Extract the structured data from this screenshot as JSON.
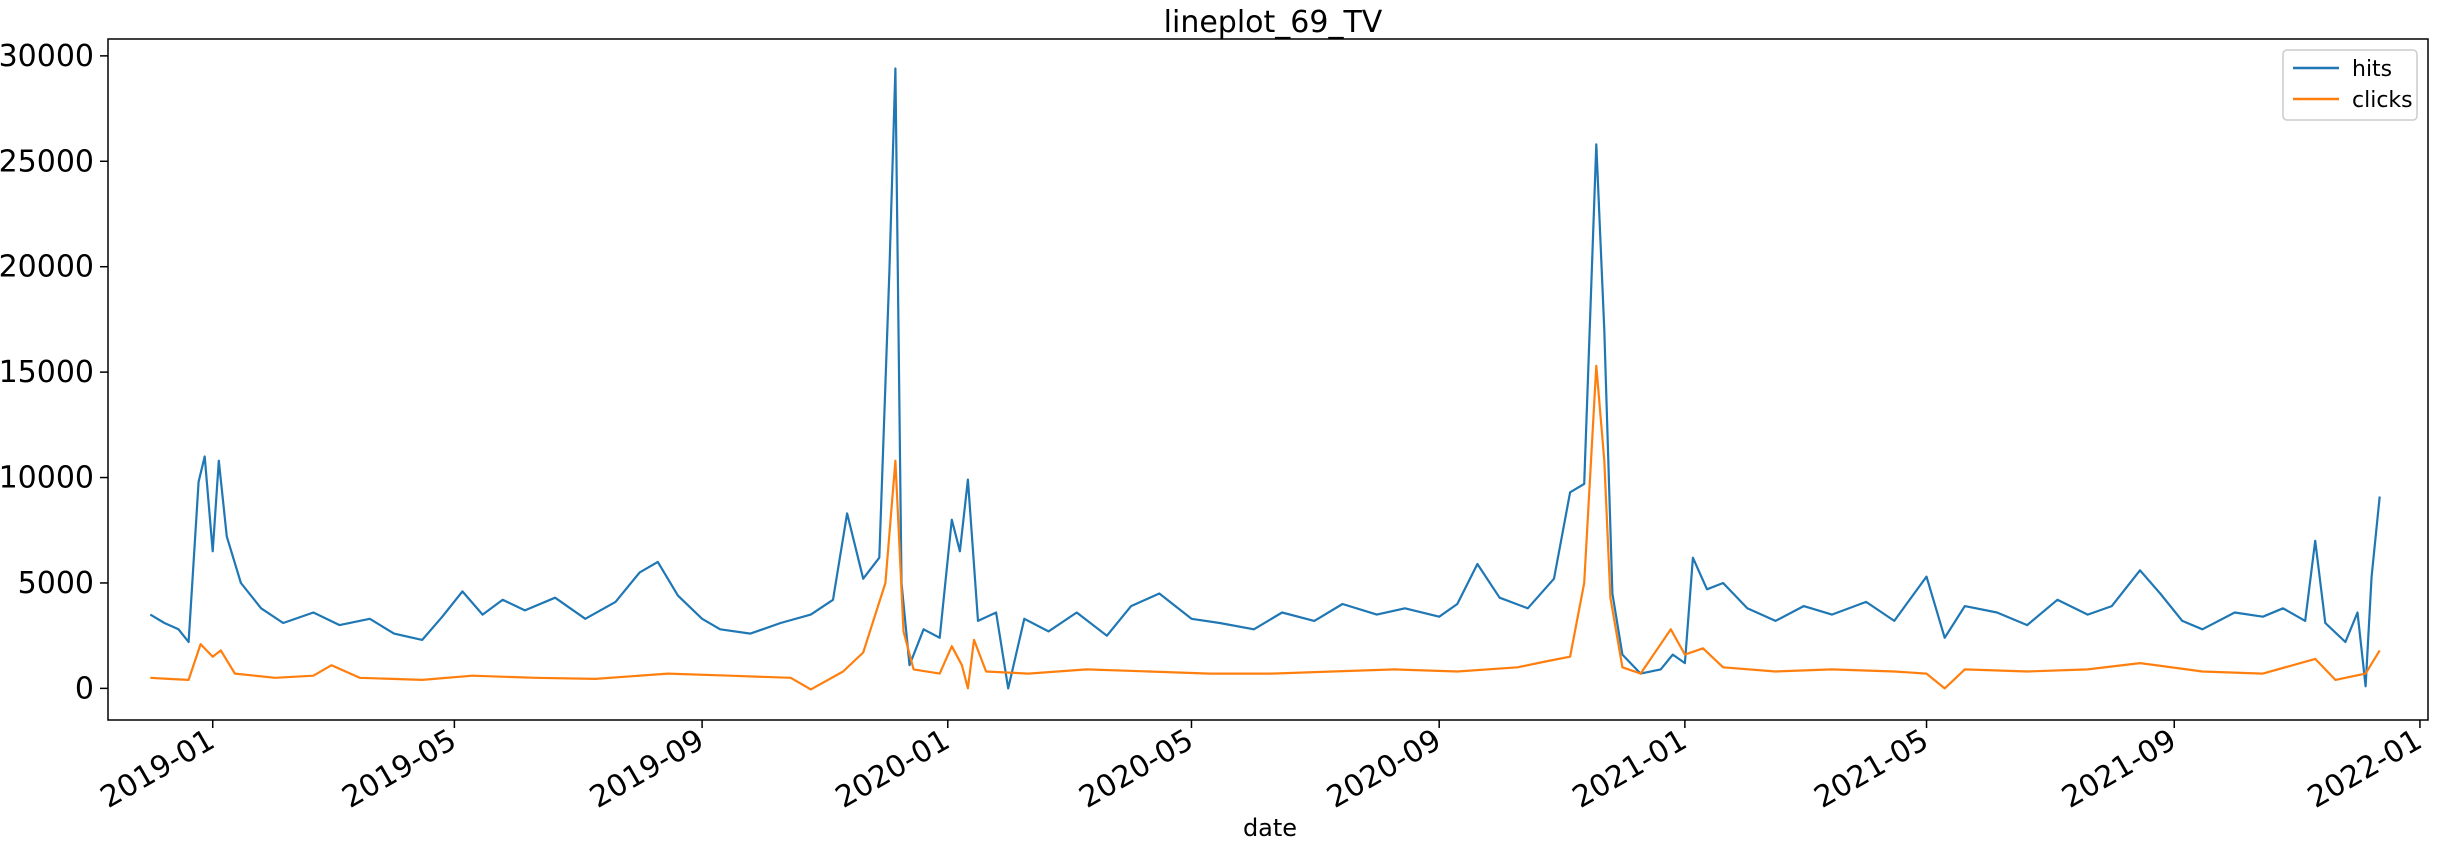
{
  "chart_data": {
    "type": "line",
    "title": "lineplot_69_TV",
    "xlabel": "date",
    "ylabel": "",
    "x_range": [
      "2018-11-10",
      "2022-01-05"
    ],
    "ylim": [
      -1500,
      30800
    ],
    "x_ticks": [
      "2019-01",
      "2019-05",
      "2019-09",
      "2020-01",
      "2020-05",
      "2020-09",
      "2021-01",
      "2021-05",
      "2021-09",
      "2022-01"
    ],
    "y_ticks": [
      0,
      5000,
      10000,
      15000,
      20000,
      25000,
      30000
    ],
    "grid": false,
    "legend": "top-right",
    "series": [
      {
        "name": "hits",
        "color": "#1f77b4",
        "points": [
          [
            "2018-12-01",
            3500
          ],
          [
            "2018-12-08",
            3100
          ],
          [
            "2018-12-15",
            2800
          ],
          [
            "2018-12-20",
            2200
          ],
          [
            "2018-12-25",
            9800
          ],
          [
            "2018-12-28",
            11000
          ],
          [
            "2019-01-01",
            6500
          ],
          [
            "2019-01-04",
            10800
          ],
          [
            "2019-01-08",
            7200
          ],
          [
            "2019-01-15",
            5000
          ],
          [
            "2019-01-25",
            3800
          ],
          [
            "2019-02-05",
            3100
          ],
          [
            "2019-02-20",
            3600
          ],
          [
            "2019-03-05",
            3000
          ],
          [
            "2019-03-20",
            3300
          ],
          [
            "2019-04-01",
            2600
          ],
          [
            "2019-04-15",
            2300
          ],
          [
            "2019-04-25",
            3400
          ],
          [
            "2019-05-05",
            4600
          ],
          [
            "2019-05-15",
            3500
          ],
          [
            "2019-05-25",
            4200
          ],
          [
            "2019-06-05",
            3700
          ],
          [
            "2019-06-20",
            4300
          ],
          [
            "2019-07-05",
            3300
          ],
          [
            "2019-07-20",
            4100
          ],
          [
            "2019-08-01",
            5500
          ],
          [
            "2019-08-10",
            6000
          ],
          [
            "2019-08-20",
            4400
          ],
          [
            "2019-09-01",
            3300
          ],
          [
            "2019-09-10",
            2800
          ],
          [
            "2019-09-25",
            2600
          ],
          [
            "2019-10-10",
            3100
          ],
          [
            "2019-10-25",
            3500
          ],
          [
            "2019-11-05",
            4200
          ],
          [
            "2019-11-12",
            8300
          ],
          [
            "2019-11-20",
            5200
          ],
          [
            "2019-11-28",
            6200
          ],
          [
            "2019-12-03",
            19800
          ],
          [
            "2019-12-06",
            29400
          ],
          [
            "2019-12-09",
            5000
          ],
          [
            "2019-12-13",
            1100
          ],
          [
            "2019-12-20",
            2800
          ],
          [
            "2019-12-28",
            2400
          ],
          [
            "2020-01-03",
            8000
          ],
          [
            "2020-01-07",
            6500
          ],
          [
            "2020-01-11",
            9900
          ],
          [
            "2020-01-16",
            3200
          ],
          [
            "2020-01-25",
            3600
          ],
          [
            "2020-01-31",
            0
          ],
          [
            "2020-02-08",
            3300
          ],
          [
            "2020-02-20",
            2700
          ],
          [
            "2020-03-05",
            3600
          ],
          [
            "2020-03-20",
            2500
          ],
          [
            "2020-04-01",
            3900
          ],
          [
            "2020-04-15",
            4500
          ],
          [
            "2020-05-01",
            3300
          ],
          [
            "2020-05-15",
            3100
          ],
          [
            "2020-06-01",
            2800
          ],
          [
            "2020-06-15",
            3600
          ],
          [
            "2020-07-01",
            3200
          ],
          [
            "2020-07-15",
            4000
          ],
          [
            "2020-08-01",
            3500
          ],
          [
            "2020-08-15",
            3800
          ],
          [
            "2020-09-01",
            3400
          ],
          [
            "2020-09-10",
            4000
          ],
          [
            "2020-09-20",
            5900
          ],
          [
            "2020-10-01",
            4300
          ],
          [
            "2020-10-15",
            3800
          ],
          [
            "2020-10-28",
            5200
          ],
          [
            "2020-11-05",
            9300
          ],
          [
            "2020-11-12",
            9700
          ],
          [
            "2020-11-18",
            25800
          ],
          [
            "2020-11-22",
            17000
          ],
          [
            "2020-11-26",
            4500
          ],
          [
            "2020-12-01",
            1600
          ],
          [
            "2020-12-10",
            700
          ],
          [
            "2020-12-20",
            900
          ],
          [
            "2020-12-26",
            1600
          ],
          [
            "2021-01-01",
            1200
          ],
          [
            "2021-01-05",
            6200
          ],
          [
            "2021-01-12",
            4700
          ],
          [
            "2021-01-20",
            5000
          ],
          [
            "2021-02-01",
            3800
          ],
          [
            "2021-02-15",
            3200
          ],
          [
            "2021-03-01",
            3900
          ],
          [
            "2021-03-15",
            3500
          ],
          [
            "2021-04-01",
            4100
          ],
          [
            "2021-04-15",
            3200
          ],
          [
            "2021-05-01",
            5300
          ],
          [
            "2021-05-10",
            2400
          ],
          [
            "2021-05-20",
            3900
          ],
          [
            "2021-06-05",
            3600
          ],
          [
            "2021-06-20",
            3000
          ],
          [
            "2021-07-05",
            4200
          ],
          [
            "2021-07-20",
            3500
          ],
          [
            "2021-08-01",
            3900
          ],
          [
            "2021-08-15",
            5600
          ],
          [
            "2021-08-25",
            4500
          ],
          [
            "2021-09-05",
            3200
          ],
          [
            "2021-09-15",
            2800
          ],
          [
            "2021-10-01",
            3600
          ],
          [
            "2021-10-15",
            3400
          ],
          [
            "2021-10-25",
            3800
          ],
          [
            "2021-11-05",
            3200
          ],
          [
            "2021-11-10",
            7000
          ],
          [
            "2021-11-15",
            3100
          ],
          [
            "2021-11-25",
            2200
          ],
          [
            "2021-12-01",
            3600
          ],
          [
            "2021-12-05",
            100
          ],
          [
            "2021-12-08",
            5300
          ],
          [
            "2021-12-12",
            9100
          ]
        ]
      },
      {
        "name": "clicks",
        "color": "#ff7f0e",
        "points": [
          [
            "2018-12-01",
            500
          ],
          [
            "2018-12-10",
            450
          ],
          [
            "2018-12-20",
            400
          ],
          [
            "2018-12-26",
            2100
          ],
          [
            "2019-01-01",
            1500
          ],
          [
            "2019-01-05",
            1800
          ],
          [
            "2019-01-12",
            700
          ],
          [
            "2019-02-01",
            500
          ],
          [
            "2019-02-20",
            600
          ],
          [
            "2019-03-01",
            1100
          ],
          [
            "2019-03-15",
            500
          ],
          [
            "2019-04-15",
            400
          ],
          [
            "2019-05-10",
            600
          ],
          [
            "2019-06-10",
            500
          ],
          [
            "2019-07-10",
            450
          ],
          [
            "2019-08-15",
            700
          ],
          [
            "2019-09-15",
            600
          ],
          [
            "2019-10-15",
            500
          ],
          [
            "2019-10-25",
            -50
          ],
          [
            "2019-11-10",
            800
          ],
          [
            "2019-11-20",
            1700
          ],
          [
            "2019-12-01",
            5000
          ],
          [
            "2019-12-06",
            10800
          ],
          [
            "2019-12-10",
            2700
          ],
          [
            "2019-12-15",
            900
          ],
          [
            "2019-12-28",
            700
          ],
          [
            "2020-01-03",
            2000
          ],
          [
            "2020-01-08",
            1100
          ],
          [
            "2020-01-11",
            0
          ],
          [
            "2020-01-14",
            2300
          ],
          [
            "2020-01-20",
            800
          ],
          [
            "2020-02-10",
            700
          ],
          [
            "2020-03-10",
            900
          ],
          [
            "2020-04-10",
            800
          ],
          [
            "2020-05-10",
            700
          ],
          [
            "2020-06-10",
            700
          ],
          [
            "2020-07-10",
            800
          ],
          [
            "2020-08-10",
            900
          ],
          [
            "2020-09-10",
            800
          ],
          [
            "2020-10-10",
            1000
          ],
          [
            "2020-10-25",
            1300
          ],
          [
            "2020-11-05",
            1500
          ],
          [
            "2020-11-12",
            5000
          ],
          [
            "2020-11-18",
            15300
          ],
          [
            "2020-11-22",
            10800
          ],
          [
            "2020-11-25",
            4300
          ],
          [
            "2020-12-01",
            1000
          ],
          [
            "2020-12-10",
            700
          ],
          [
            "2020-12-25",
            2800
          ],
          [
            "2021-01-01",
            1600
          ],
          [
            "2021-01-10",
            1900
          ],
          [
            "2021-01-20",
            1000
          ],
          [
            "2021-02-15",
            800
          ],
          [
            "2021-03-15",
            900
          ],
          [
            "2021-04-15",
            800
          ],
          [
            "2021-05-01",
            700
          ],
          [
            "2021-05-10",
            0
          ],
          [
            "2021-05-20",
            900
          ],
          [
            "2021-06-20",
            800
          ],
          [
            "2021-07-20",
            900
          ],
          [
            "2021-08-15",
            1200
          ],
          [
            "2021-09-15",
            800
          ],
          [
            "2021-10-15",
            700
          ],
          [
            "2021-11-10",
            1400
          ],
          [
            "2021-11-20",
            400
          ],
          [
            "2021-12-05",
            700
          ],
          [
            "2021-12-12",
            1800
          ]
        ]
      }
    ]
  }
}
